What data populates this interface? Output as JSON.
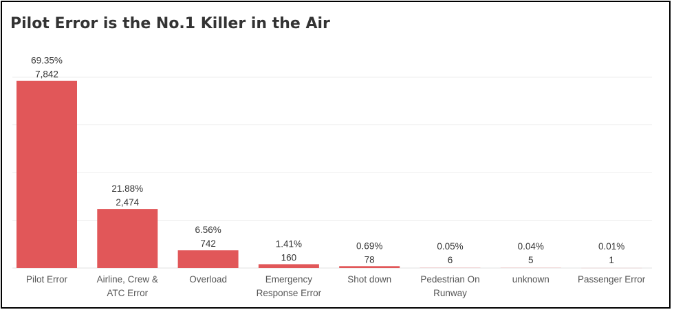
{
  "chart_data": {
    "type": "bar",
    "title": "Pilot Error is the No.1 Killer in the Air",
    "categories": [
      [
        "Pilot Error"
      ],
      [
        "Airline, Crew &",
        "ATC Error"
      ],
      [
        "Overload"
      ],
      [
        "Emergency",
        "Response Error"
      ],
      [
        "Shot down"
      ],
      [
        "Pedestrian On",
        "Runway"
      ],
      [
        "unknown"
      ],
      [
        "Passenger Error"
      ]
    ],
    "values": [
      7842,
      2474,
      742,
      160,
      78,
      6,
      5,
      1
    ],
    "value_labels": [
      "7,842",
      "2,474",
      "742",
      "160",
      "78",
      "6",
      "5",
      "1"
    ],
    "percent_labels": [
      "69.35%",
      "21.88%",
      "6.56%",
      "1.41%",
      "0.69%",
      "0.05%",
      "0.04%",
      "0.01%"
    ],
    "ylim": [
      0,
      10000
    ],
    "grid": true,
    "bar_color": "#e15759"
  }
}
